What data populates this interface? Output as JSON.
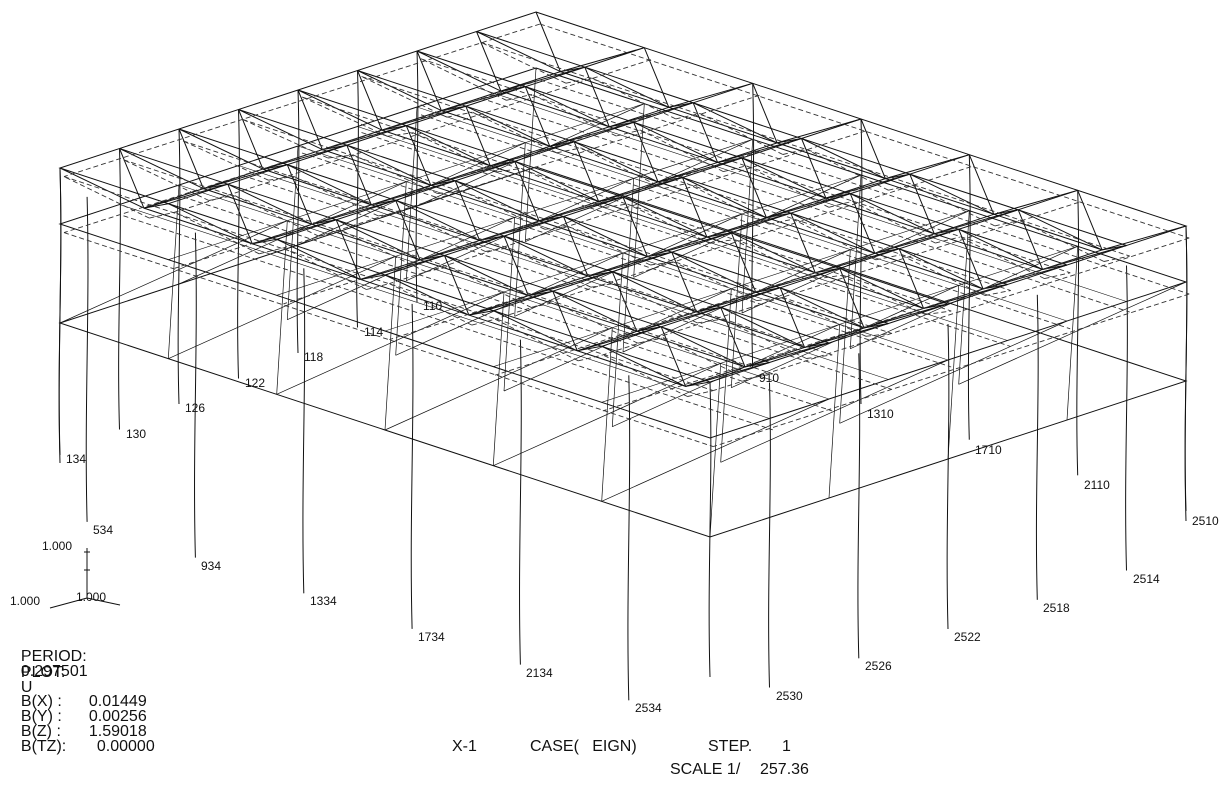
{
  "axis_triad": {
    "vertical_label": "1.000",
    "left_label": "1.000",
    "depth_label": "1.000"
  },
  "node_labels": {
    "top_row": [
      "134",
      "130",
      "126",
      "122",
      "118",
      "114",
      "110"
    ],
    "right_row": [
      "910",
      "1310",
      "1710",
      "2110",
      "2510"
    ],
    "left_bottom_row": [
      "534",
      "934",
      "1334",
      "1734",
      "2134",
      "2534"
    ],
    "right_bottom_row": [
      "2530",
      "2526",
      "2522",
      "2518",
      "2514"
    ]
  },
  "results": {
    "period_label": "PERIOD:",
    "period_value": "0.297501",
    "plot_label": "PLOT:",
    "plot_value": "U",
    "bx_label": "B(X) :",
    "bx_value": "0.01449",
    "by_label": "B(Y) :",
    "by_value": "0.00256",
    "bz_label": "B(Z) :",
    "bz_value": "1.59018",
    "btz_label": "B(TZ):",
    "btz_value": "0.00000"
  },
  "footer": {
    "view": "X-1",
    "case": "CASE(   EIGN)",
    "step_label": "STEP.",
    "step_value": "1",
    "scale_label": "SCALE 1/",
    "scale_value": "257.36"
  }
}
